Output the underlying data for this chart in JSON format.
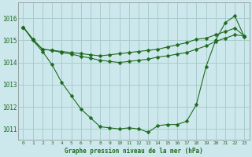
{
  "line1": [
    1015.6,
    1015.0,
    1014.5,
    1013.9,
    1013.1,
    1012.5,
    1011.9,
    1011.5,
    1011.1,
    1011.05,
    1011.0,
    1011.05,
    1011.0,
    1010.85,
    1011.15,
    1011.2,
    1011.2,
    1011.35,
    1012.1,
    1013.8,
    1015.0,
    1015.8,
    1016.1,
    1015.15
  ],
  "line2": [
    1015.6,
    1015.05,
    1014.6,
    1014.55,
    1014.5,
    1014.45,
    1014.4,
    1014.35,
    1014.3,
    1014.35,
    1014.4,
    1014.45,
    1014.5,
    1014.55,
    1014.6,
    1014.7,
    1014.8,
    1014.9,
    1015.05,
    1015.1,
    1015.25,
    1015.4,
    1015.55,
    1015.2
  ],
  "line3": [
    1015.6,
    1015.05,
    1014.6,
    1014.55,
    1014.45,
    1014.38,
    1014.28,
    1014.2,
    1014.1,
    1014.05,
    1014.0,
    1014.05,
    1014.1,
    1014.15,
    1014.25,
    1014.3,
    1014.38,
    1014.45,
    1014.6,
    1014.75,
    1014.95,
    1015.1,
    1015.25,
    1015.2
  ],
  "background_color": "#cce8ec",
  "grid_color": "#aacccc",
  "line_color": "#1f6b1f",
  "title": "Graphe pression niveau de la mer (hPa)",
  "ylim_min": 1010.5,
  "ylim_max": 1016.7,
  "yticks": [
    1011,
    1012,
    1013,
    1014,
    1015,
    1016
  ],
  "xticks": [
    0,
    1,
    2,
    3,
    4,
    5,
    6,
    7,
    8,
    9,
    10,
    11,
    12,
    13,
    14,
    15,
    16,
    17,
    18,
    19,
    20,
    21,
    22,
    23
  ]
}
